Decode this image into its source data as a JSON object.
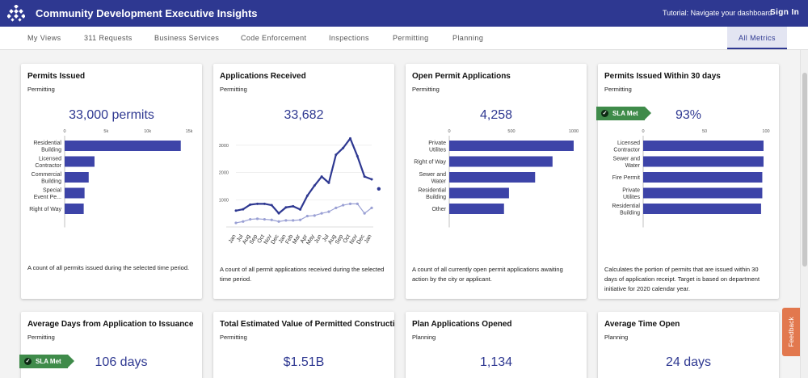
{
  "header": {
    "title": "Community Development Executive Insights",
    "tutorial": "Tutorial: Navigate your dashboard",
    "signin": "Sign In"
  },
  "tabs": [
    "My Views",
    "311 Requests",
    "Business Services",
    "Code Enforcement",
    "Inspections",
    "Permitting",
    "Planning",
    "All Metrics"
  ],
  "sla_label": "SLA Met",
  "feedback": "Feedback",
  "cards": [
    {
      "title": "Permits Issued",
      "sub": "Permitting",
      "value": "33,000 permits",
      "desc": "A count of all permits issued during the selected time period."
    },
    {
      "title": "Applications Received",
      "sub": "Permitting",
      "value": "33,682",
      "desc": "A count of all permit applications received during the selected time period."
    },
    {
      "title": "Open Permit Applications",
      "sub": "Permitting",
      "value": "4,258",
      "desc": "A count of all currently open permit applications awaiting action by the city or applicant."
    },
    {
      "title": "Permits Issued Within 30 days",
      "sub": "Permitting",
      "value": "93%",
      "desc": "Calculates the portion of permits that are issued within 30 days of application receipt. Target is based on department initiative for 2020 calendar year."
    },
    {
      "title": "Average Days from Application to Issuance",
      "sub": "Permitting",
      "value": "106 days"
    },
    {
      "title": "Total Estimated Value of Permitted Construction",
      "sub": "Permitting",
      "value": "$1.51B"
    },
    {
      "title": "Plan Applications Opened",
      "sub": "Planning",
      "value": "1,134"
    },
    {
      "title": "Average Time Open",
      "sub": "Planning",
      "value": "24 days"
    }
  ],
  "chart_data": [
    {
      "type": "bar",
      "orientation": "horizontal",
      "categories": [
        "Residential\nBuilding",
        "Licensed\nContractor",
        "Commercial\nBuilding",
        "Special\nEvent Pe...",
        "Right of Way"
      ],
      "values": [
        14000,
        3600,
        2900,
        2400,
        2300
      ],
      "xlim": [
        0,
        15000
      ],
      "ticks": [
        "0",
        "5k",
        "10k",
        "15k"
      ],
      "tick_values": [
        0,
        5000,
        10000,
        15000
      ]
    },
    {
      "type": "line",
      "categories": [
        "Jan",
        "Jul",
        "Aug",
        "Sep",
        "Oct",
        "Nov",
        "Dec",
        "Jan",
        "Feb",
        "Mar",
        "Apr",
        "May",
        "Jun",
        "Jul",
        "Aug",
        "Sep",
        "Oct",
        "Nov",
        "Dec",
        "Jan"
      ],
      "series": [
        {
          "values": [
            600,
            650,
            820,
            850,
            850,
            800,
            500,
            720,
            760,
            640,
            1150,
            1520,
            1850,
            1620,
            2650,
            2900,
            3250,
            2600,
            1850,
            1750
          ]
        },
        {
          "values": [
            150,
            200,
            280,
            300,
            280,
            260,
            200,
            240,
            240,
            260,
            400,
            420,
            500,
            560,
            700,
            800,
            850,
            850,
            500,
            700
          ]
        }
      ],
      "extra_point": {
        "x_index": 20,
        "value": 1400
      },
      "ylim": [
        0,
        3500
      ],
      "yticks": [
        1000,
        2000,
        3000
      ]
    },
    {
      "type": "bar",
      "orientation": "horizontal",
      "categories": [
        "Private\nUtilites",
        "Right of Way",
        "Sewer and\nWater",
        "Residential\nBuilding",
        "Other"
      ],
      "values": [
        1000,
        830,
        690,
        480,
        440
      ],
      "xlim": [
        0,
        1000
      ],
      "ticks": [
        "0",
        "500",
        "1000"
      ],
      "tick_values": [
        0,
        500,
        1000
      ]
    },
    {
      "type": "bar",
      "orientation": "horizontal",
      "categories": [
        "Licensed\nContractor",
        "Sewer and\nWater",
        "Fire Permit",
        "Private\nUtilites",
        "Residential\nBuilding"
      ],
      "values": [
        98,
        98,
        97,
        97,
        96
      ],
      "xlim": [
        0,
        100
      ],
      "ticks": [
        "0",
        "50",
        "100"
      ],
      "tick_values": [
        0,
        50,
        100
      ]
    }
  ],
  "colors": {
    "brand": "#2e3891",
    "bar": "#3d44a8",
    "line_secondary": "#9aa0d4",
    "sla": "#3f8b4a",
    "feedback": "#e2784e"
  }
}
